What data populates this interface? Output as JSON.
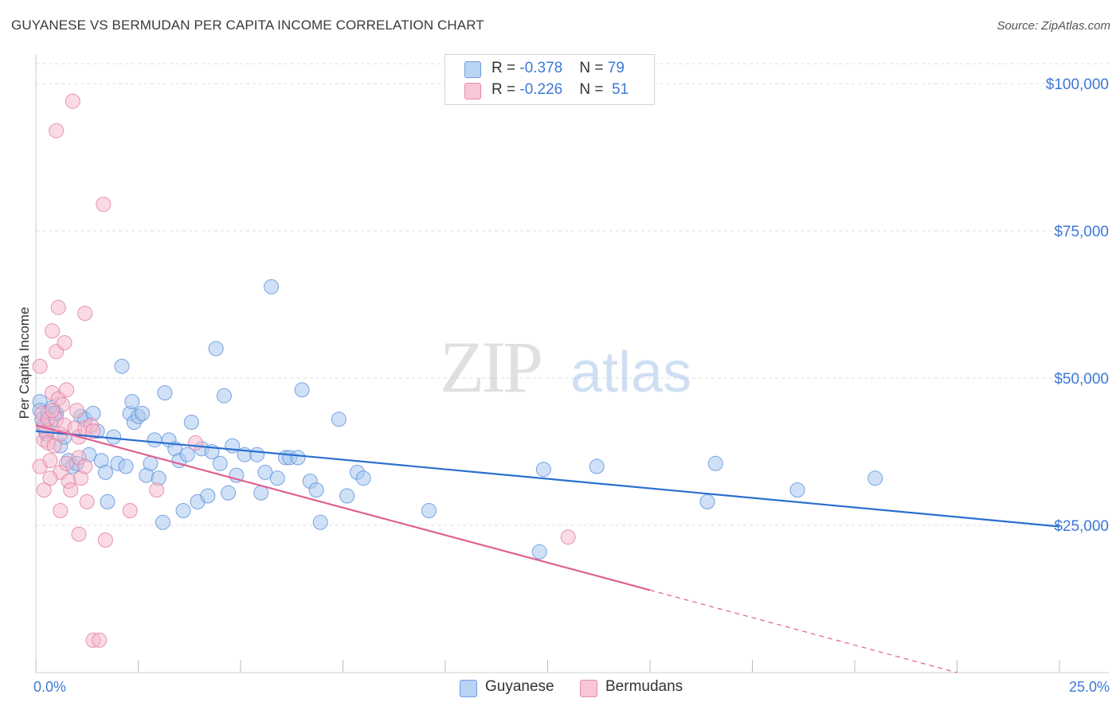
{
  "title": "GUYANESE VS BERMUDAN PER CAPITA INCOME CORRELATION CHART",
  "source": "Source: ZipAtlas.com",
  "watermark": {
    "zip": "ZIP",
    "atlas": "atlas"
  },
  "legend": {
    "rows": [
      {
        "r_label": "R = ",
        "r_value": "-0.378",
        "n_label": "N = ",
        "n_value": "79"
      },
      {
        "r_label": "R = ",
        "r_value": "-0.226",
        "n_label": "N = ",
        "n_value": "51"
      }
    ]
  },
  "bottom_legend": {
    "guyanese": "Guyanese",
    "bermudans": "Bermudans"
  },
  "colors": {
    "guyanese_fill": "#aac8f0",
    "guyanese_stroke": "#5a8fd8",
    "guyanese_line": "#2a6fd0",
    "bermudan_fill": "#f6b8cc",
    "bermudan_stroke": "#e07c9e",
    "bermudan_line": "#e06090",
    "axis_label": "#3d78d8",
    "grid": "#dddddd"
  },
  "chart_data": {
    "type": "scatter",
    "title": "GUYANESE VS BERMUDAN PER CAPITA INCOME CORRELATION CHART",
    "xlabel": "",
    "ylabel": "Per Capita Income",
    "xlim": [
      0,
      25
    ],
    "ylim": [
      0,
      105000
    ],
    "x_tick_labels": [
      "0.0%",
      "25.0%"
    ],
    "y_ticks": [
      25000,
      50000,
      75000,
      100000
    ],
    "y_tick_labels": [
      "$25,000",
      "$50,000",
      "$75,000",
      "$100,000"
    ],
    "series": [
      {
        "name": "Guyanese",
        "r": -0.378,
        "n": 79,
        "trend": {
          "x": [
            0,
            25
          ],
          "y": [
            41000,
            24800
          ]
        },
        "points": [
          [
            0.1,
            46000
          ],
          [
            0.1,
            44500
          ],
          [
            0.15,
            43000
          ],
          [
            0.2,
            41500
          ],
          [
            0.25,
            40500
          ],
          [
            0.3,
            44000
          ],
          [
            0.35,
            42500
          ],
          [
            0.4,
            45000
          ],
          [
            0.5,
            44000
          ],
          [
            0.6,
            38500
          ],
          [
            0.7,
            40000
          ],
          [
            0.8,
            36000
          ],
          [
            0.9,
            35000
          ],
          [
            1.0,
            35500
          ],
          [
            1.1,
            43500
          ],
          [
            1.2,
            43000
          ],
          [
            1.3,
            37000
          ],
          [
            1.4,
            44000
          ],
          [
            1.5,
            41000
          ],
          [
            1.6,
            36000
          ],
          [
            1.7,
            34000
          ],
          [
            1.75,
            29000
          ],
          [
            1.9,
            40000
          ],
          [
            2.0,
            35500
          ],
          [
            2.1,
            52000
          ],
          [
            2.2,
            35000
          ],
          [
            2.3,
            44000
          ],
          [
            2.35,
            46000
          ],
          [
            2.4,
            42500
          ],
          [
            2.5,
            43500
          ],
          [
            2.6,
            44000
          ],
          [
            2.7,
            33500
          ],
          [
            2.8,
            35500
          ],
          [
            2.9,
            39500
          ],
          [
            3.0,
            33000
          ],
          [
            3.1,
            25500
          ],
          [
            3.15,
            47500
          ],
          [
            3.25,
            39500
          ],
          [
            3.4,
            38000
          ],
          [
            3.5,
            36000
          ],
          [
            3.6,
            27500
          ],
          [
            3.7,
            37000
          ],
          [
            3.8,
            42500
          ],
          [
            3.95,
            29000
          ],
          [
            4.05,
            38000
          ],
          [
            4.2,
            30000
          ],
          [
            4.3,
            37500
          ],
          [
            4.4,
            55000
          ],
          [
            4.5,
            35500
          ],
          [
            4.6,
            47000
          ],
          [
            4.7,
            30500
          ],
          [
            4.8,
            38500
          ],
          [
            4.9,
            33500
          ],
          [
            5.1,
            37000
          ],
          [
            5.4,
            37000
          ],
          [
            5.5,
            30500
          ],
          [
            5.6,
            34000
          ],
          [
            5.75,
            65500
          ],
          [
            5.9,
            33000
          ],
          [
            6.1,
            36500
          ],
          [
            6.2,
            36500
          ],
          [
            6.4,
            36500
          ],
          [
            6.5,
            48000
          ],
          [
            6.7,
            32500
          ],
          [
            6.85,
            31000
          ],
          [
            6.95,
            25500
          ],
          [
            7.4,
            43000
          ],
          [
            7.6,
            30000
          ],
          [
            7.85,
            34000
          ],
          [
            8.0,
            33000
          ],
          [
            9.6,
            27500
          ],
          [
            12.3,
            20500
          ],
          [
            12.4,
            34500
          ],
          [
            13.7,
            35000
          ],
          [
            16.4,
            29000
          ],
          [
            16.6,
            35500
          ],
          [
            18.6,
            31000
          ],
          [
            20.5,
            33000
          ],
          [
            0.45,
            44000
          ]
        ]
      },
      {
        "name": "Bermudans",
        "r": -0.226,
        "n": 51,
        "trend": {
          "x": [
            0,
            15
          ],
          "y": [
            42000,
            14000
          ]
        },
        "trend_dashed": {
          "x": [
            15,
            22.5
          ],
          "y": [
            14000,
            0
          ]
        },
        "points": [
          [
            0.1,
            52000
          ],
          [
            0.1,
            35000
          ],
          [
            0.15,
            44000
          ],
          [
            0.2,
            42000
          ],
          [
            0.2,
            39500
          ],
          [
            0.25,
            41000
          ],
          [
            0.3,
            43000
          ],
          [
            0.3,
            39000
          ],
          [
            0.35,
            36000
          ],
          [
            0.4,
            58000
          ],
          [
            0.4,
            47500
          ],
          [
            0.45,
            38500
          ],
          [
            0.5,
            54500
          ],
          [
            0.5,
            43000
          ],
          [
            0.5,
            92000
          ],
          [
            0.55,
            62000
          ],
          [
            0.55,
            46500
          ],
          [
            0.6,
            40500
          ],
          [
            0.6,
            27500
          ],
          [
            0.6,
            34000
          ],
          [
            0.65,
            45500
          ],
          [
            0.7,
            56000
          ],
          [
            0.7,
            42000
          ],
          [
            0.75,
            48000
          ],
          [
            0.75,
            35500
          ],
          [
            0.8,
            32500
          ],
          [
            0.85,
            31000
          ],
          [
            0.9,
            97000
          ],
          [
            0.95,
            41500
          ],
          [
            1.0,
            44500
          ],
          [
            1.05,
            40000
          ],
          [
            1.05,
            36500
          ],
          [
            1.05,
            23500
          ],
          [
            1.1,
            33000
          ],
          [
            1.2,
            41500
          ],
          [
            1.2,
            35000
          ],
          [
            1.2,
            61000
          ],
          [
            1.25,
            29000
          ],
          [
            1.35,
            42000
          ],
          [
            1.4,
            41000
          ],
          [
            1.4,
            5500
          ],
          [
            1.55,
            5500
          ],
          [
            1.65,
            79500
          ],
          [
            1.7,
            22500
          ],
          [
            2.3,
            27500
          ],
          [
            2.95,
            31000
          ],
          [
            3.9,
            39000
          ],
          [
            13.0,
            23000
          ],
          [
            0.2,
            31000
          ],
          [
            0.35,
            33000
          ],
          [
            0.4,
            44500
          ]
        ]
      }
    ]
  }
}
